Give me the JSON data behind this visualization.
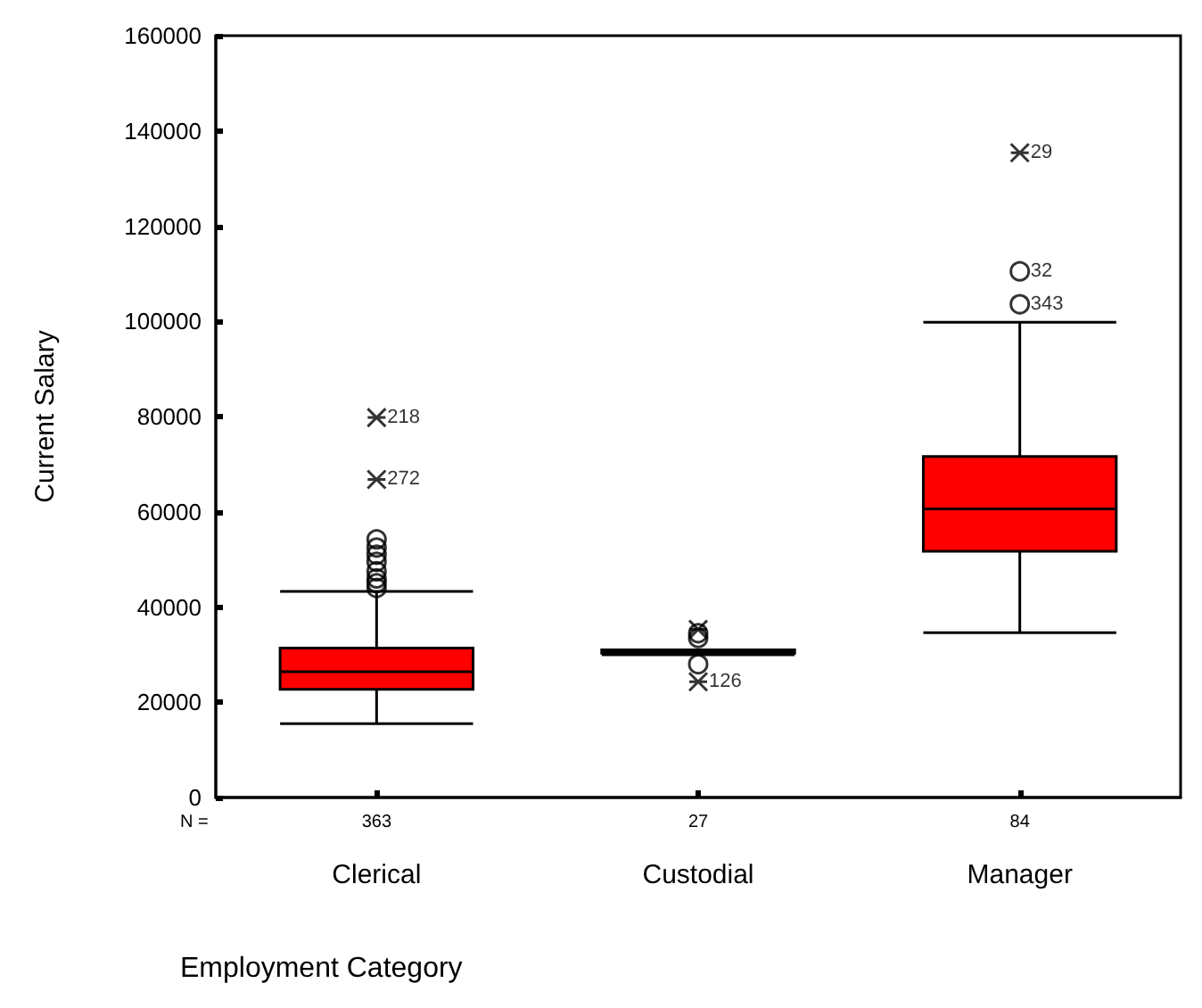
{
  "chart_data": {
    "type": "box",
    "xlabel": "Employment Category",
    "ylabel": "Current Salary",
    "categories": [
      "Clerical",
      "Custodial",
      "Manager"
    ],
    "color": "#ff0000",
    "ylim": [
      0,
      160000
    ],
    "yticks": [
      0,
      20000,
      40000,
      60000,
      80000,
      100000,
      120000,
      140000,
      160000
    ],
    "grid": false,
    "boxes": [
      {
        "low": 15500,
        "q1": 22700,
        "median": 26400,
        "q3": 31400,
        "high": 43300
      },
      {
        "low": 30000,
        "q1": 30300,
        "median": 30750,
        "q3": 31000,
        "high": 31000
      },
      {
        "low": 34600,
        "q1": 51700,
        "median": 60600,
        "q3": 71600,
        "high": 99800
      }
    ],
    "series": [
      {
        "type": "scatter",
        "marker": "circle",
        "color": "#000000",
        "x": [
          "Clerical",
          "Clerical",
          "Clerical",
          "Clerical",
          "Clerical",
          "Clerical",
          "Clerical",
          "Clerical",
          "Custodial",
          "Custodial",
          "Custodial",
          "Manager",
          "Manager"
        ],
        "values": [
          54200,
          52500,
          51000,
          49500,
          47500,
          46000,
          45000,
          44000,
          34500,
          33500,
          28000,
          110500,
          103600
        ]
      },
      {
        "type": "scatter",
        "marker": "cross",
        "color": "#000000",
        "x": [
          "Clerical",
          "Clerical",
          "Custodial",
          "Manager",
          "Custodial"
        ],
        "values": [
          79800,
          66800,
          35300,
          135400,
          24300
        ]
      }
    ],
    "annotations": [
      "N =",
      "363",
      "27",
      "84",
      {
        "text": "218",
        "x": "Clerical",
        "y": 79800
      },
      {
        "text": "272",
        "x": "Clerical",
        "y": 66800
      },
      {
        "text": "29",
        "x": "Manager",
        "y": 135400
      },
      {
        "text": "32",
        "x": "Manager",
        "y": 110500
      },
      {
        "text": "343",
        "x": "Manager",
        "y": 103600
      },
      {
        "text": "126",
        "x": "Custodial",
        "y": 24300
      }
    ]
  }
}
